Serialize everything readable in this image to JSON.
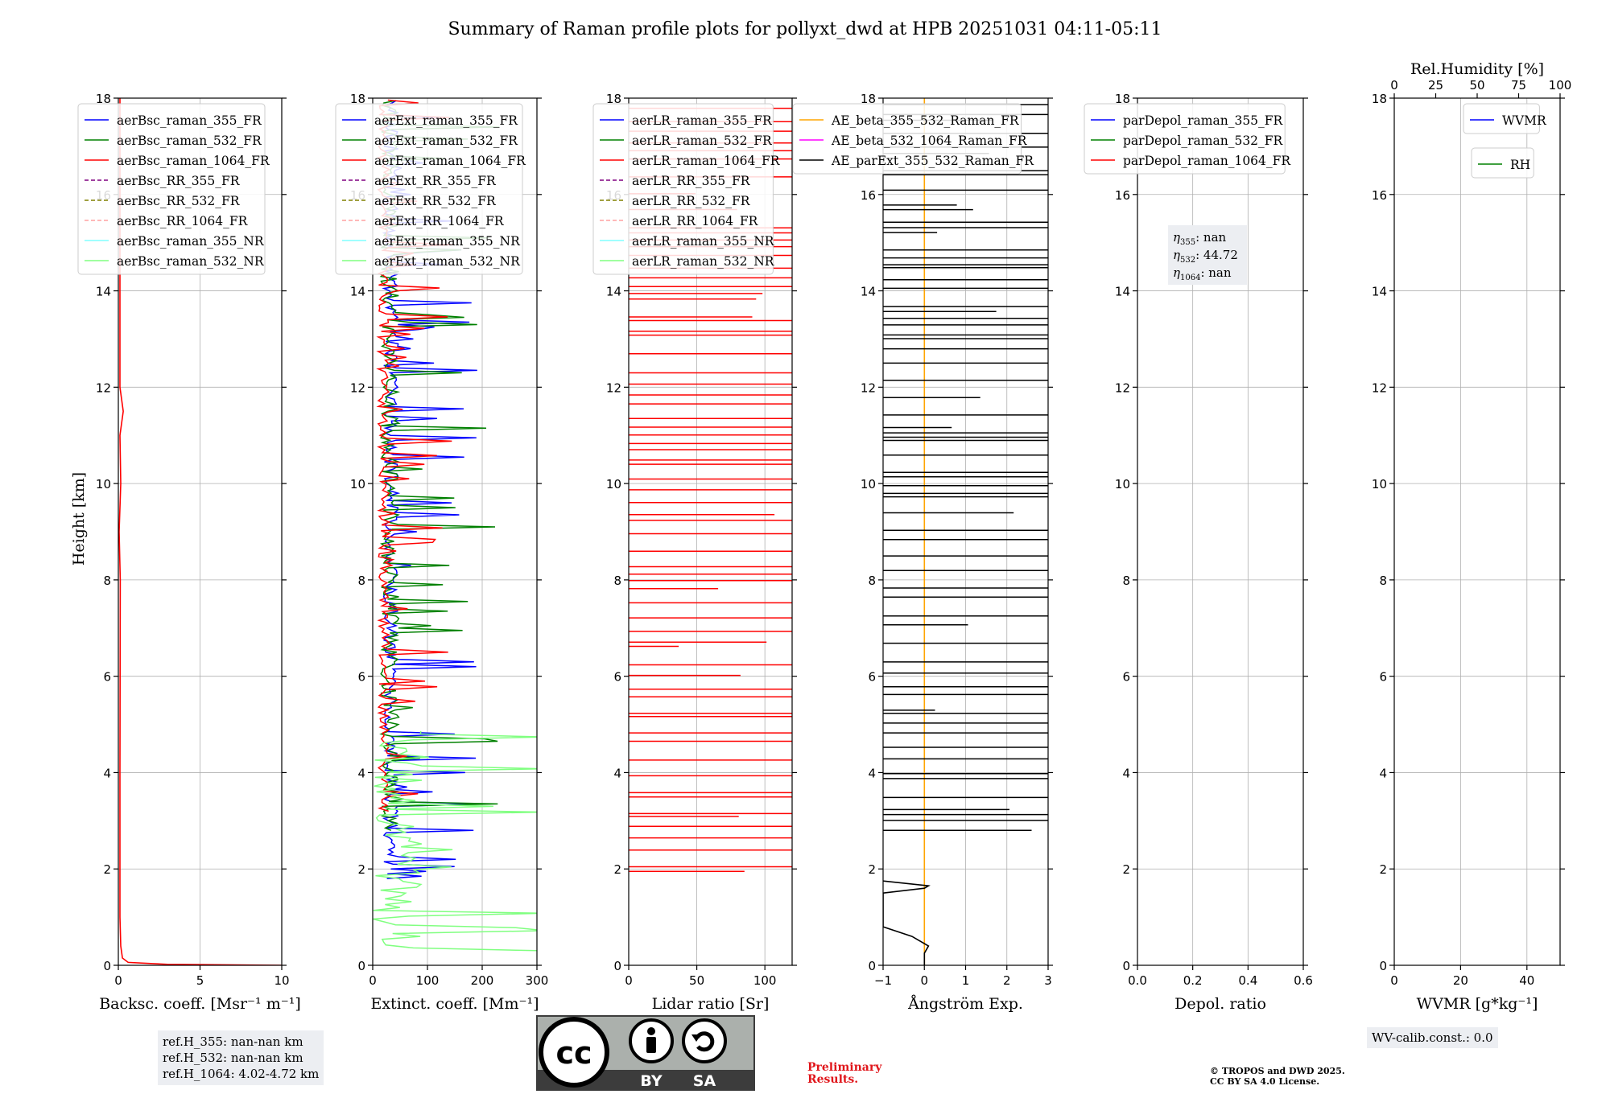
{
  "figure": {
    "title": "Summary of Raman profile plots for pollyxt_dwd at HPB 20251031 04:11-05:11",
    "ylabel": "Height [km]",
    "ylim": [
      0,
      18
    ],
    "yticks": [
      0,
      2,
      4,
      6,
      8,
      10,
      12,
      14,
      16,
      18
    ]
  },
  "colors": {
    "blue": "#0000ff",
    "green": "#008000",
    "red": "#ff0000",
    "purple": "#800080",
    "olive": "#808000",
    "salmon": "#ffa0a0",
    "cyan": "#80ffff",
    "lightgreen": "#80ff80",
    "orange": "#ffa500",
    "magenta": "#ff00ff",
    "black": "#000000"
  },
  "chart_data": [
    {
      "id": "bsc",
      "type": "line",
      "xlabel": "Backsc. coeff. [Msr⁻¹ m⁻¹]",
      "xlim": [
        0,
        10
      ],
      "xticks": [
        0,
        5,
        10
      ],
      "legend": [
        "aerBsc_raman_355_FR",
        "aerBsc_raman_532_FR",
        "aerBsc_raman_1064_FR",
        "aerBsc_RR_355_FR",
        "aerBsc_RR_532_FR",
        "aerBsc_RR_1064_FR",
        "aerBsc_raman_355_NR",
        "aerBsc_raman_532_NR"
      ],
      "legend_styles": [
        [
          "blue",
          "solid"
        ],
        [
          "green",
          "solid"
        ],
        [
          "red",
          "solid"
        ],
        [
          "purple",
          "dashed"
        ],
        [
          "olive",
          "dashed"
        ],
        [
          "salmon",
          "dashed"
        ],
        [
          "cyan",
          "solid"
        ],
        [
          "lightgreen",
          "solid"
        ]
      ],
      "series": [
        {
          "name": "aerBsc_raman_1064_FR",
          "color": "red",
          "points": [
            [
              10,
              0
            ],
            [
              3,
              0.02
            ],
            [
              0.6,
              0.06
            ],
            [
              0.25,
              0.15
            ],
            [
              0.15,
              0.4
            ],
            [
              0.1,
              1
            ],
            [
              0.1,
              4
            ],
            [
              0.12,
              8
            ],
            [
              0.05,
              9
            ],
            [
              0.15,
              10
            ],
            [
              0.1,
              11
            ],
            [
              0.3,
              11.5
            ],
            [
              0.1,
              12
            ],
            [
              0.1,
              18
            ]
          ]
        }
      ]
    },
    {
      "id": "ext",
      "type": "line",
      "xlabel": "Extinct. coeff. [Mm⁻¹]",
      "xlim": [
        0,
        300
      ],
      "xticks": [
        0,
        100,
        200,
        300
      ],
      "legend": [
        "aerExt_raman_355_FR",
        "aerExt_raman_532_FR",
        "aerExt_raman_1064_FR",
        "aerExt_RR_355_FR",
        "aerExt_RR_532_FR",
        "aerExt_RR_1064_FR",
        "aerExt_raman_355_NR",
        "aerExt_raman_532_NR"
      ],
      "legend_styles": [
        [
          "blue",
          "solid"
        ],
        [
          "green",
          "solid"
        ],
        [
          "red",
          "solid"
        ],
        [
          "purple",
          "dashed"
        ],
        [
          "olive",
          "dashed"
        ],
        [
          "salmon",
          "dashed"
        ],
        [
          "cyan",
          "solid"
        ],
        [
          "lightgreen",
          "solid"
        ]
      ],
      "series": [
        {
          "name": "aerExt_raman_355_FR",
          "color": "blue",
          "noisy": {
            "from": 1.8,
            "to": 18,
            "step": 0.05,
            "base": 20,
            "amp": 90,
            "seed": 3
          }
        },
        {
          "name": "aerExt_raman_532_FR",
          "color": "green",
          "noisy": {
            "from": 2.8,
            "to": 18,
            "step": 0.05,
            "base": 15,
            "amp": 110,
            "seed": 7
          }
        },
        {
          "name": "aerExt_raman_1064_FR",
          "color": "red",
          "noisy": {
            "from": 3.2,
            "to": 18,
            "step": 0.06,
            "base": 10,
            "amp": 70,
            "seed": 11
          }
        },
        {
          "name": "aerExt_raman_532_NR",
          "color": "lightgreen",
          "noisy": {
            "from": 0.3,
            "to": 4.9,
            "step": 0.06,
            "base": 0,
            "amp": 300,
            "seed": 19
          }
        }
      ]
    },
    {
      "id": "lr",
      "type": "line",
      "xlabel": "Lidar ratio [Sr]",
      "xlim": [
        0,
        120
      ],
      "xticks": [
        0,
        50,
        100
      ],
      "legend": [
        "aerLR_raman_355_FR",
        "aerLR_raman_532_FR",
        "aerLR_raman_1064_FR",
        "aerLR_RR_355_FR",
        "aerLR_RR_532_FR",
        "aerLR_RR_1064_FR",
        "aerLR_raman_355_NR",
        "aerLR_raman_532_NR"
      ],
      "legend_styles": [
        [
          "blue",
          "solid"
        ],
        [
          "green",
          "solid"
        ],
        [
          "red",
          "solid"
        ],
        [
          "purple",
          "dashed"
        ],
        [
          "olive",
          "dashed"
        ],
        [
          "salmon",
          "dashed"
        ],
        [
          "cyan",
          "solid"
        ],
        [
          "lightgreen",
          "solid"
        ]
      ],
      "series": [
        {
          "name": "aerLR_raman_1064_FR",
          "color": "red",
          "hlines": {
            "from": 1.95,
            "to": 18,
            "seed": 23,
            "first": 85
          }
        }
      ]
    },
    {
      "id": "ae",
      "type": "line",
      "xlabel": "Ångström Exp.",
      "xlim": [
        -1,
        3
      ],
      "xticks": [
        -1,
        0,
        1,
        2,
        3
      ],
      "legend": [
        "AE_beta_355_532_Raman_FR",
        "AE_beta_532_1064_Raman_FR",
        "AE_parExt_355_532_Raman_FR"
      ],
      "legend_styles": [
        [
          "orange",
          "solid"
        ],
        [
          "magenta",
          "solid"
        ],
        [
          "black",
          "solid"
        ]
      ],
      "series": [
        {
          "name": "AE_beta_355_532_Raman_FR",
          "color": "orange",
          "points": [
            [
              0,
              0
            ],
            [
              0,
              18
            ]
          ]
        },
        {
          "name": "AE_parExt_355_532_Raman_FR",
          "color": "black",
          "points": [
            [
              0,
              0
            ],
            [
              0,
              0.25
            ],
            [
              0.1,
              0.4
            ],
            [
              -0.3,
              0.6
            ],
            [
              -1,
              0.8
            ],
            [
              -1,
              1.5
            ],
            [
              0,
              1.6
            ],
            [
              0.1,
              1.65
            ],
            [
              -1,
              1.75
            ]
          ],
          "hlines": {
            "from": 2.8,
            "to": 18,
            "seed": 31,
            "first": 2.6
          }
        }
      ]
    },
    {
      "id": "depol",
      "type": "line",
      "xlabel": "Depol. ratio",
      "xlim": [
        0,
        0.6
      ],
      "xticks": [
        0.0,
        0.2,
        0.4,
        0.6
      ],
      "legend": [
        "parDepol_raman_355_FR",
        "parDepol_raman_532_FR",
        "parDepol_raman_1064_FR"
      ],
      "legend_styles": [
        [
          "blue",
          "solid"
        ],
        [
          "green",
          "solid"
        ],
        [
          "red",
          "solid"
        ]
      ],
      "eta": [
        {
          "sym": "η",
          "sub": "355",
          "val": ": nan"
        },
        {
          "sym": "η",
          "sub": "532",
          "val": ": 44.72"
        },
        {
          "sym": "η",
          "sub": "1064",
          "val": ": nan"
        }
      ],
      "series": []
    },
    {
      "id": "wv",
      "type": "line",
      "xlabel": "WVMR [g*kg⁻¹]",
      "xlim": [
        0,
        50
      ],
      "xticks": [
        0,
        20,
        40
      ],
      "xlabel_top": "Rel.Humidity [%]",
      "top_xlim": [
        0,
        100
      ],
      "top_xticks": [
        0,
        25,
        50,
        75,
        100
      ],
      "legend": [
        "WVMR"
      ],
      "legend_styles": [
        [
          "blue",
          "solid"
        ]
      ],
      "legend2": [
        "RH"
      ],
      "legend2_styles": [
        [
          "green",
          "solid"
        ]
      ],
      "series": []
    }
  ],
  "annotations": {
    "ref": [
      "ref.H_355: nan-nan km",
      "ref.H_532: nan-nan km",
      "ref.H_1064: 4.02-4.72 km"
    ],
    "wv_calib": "WV-calib.const.: 0.0",
    "preliminary": [
      "Preliminary",
      "Results."
    ],
    "copyright": [
      "© TROPOS and DWD 2025.",
      "CC BY SA 4.0 License."
    ],
    "cc_badge": {
      "cc": "cc",
      "by": "BY",
      "sa": "SA"
    }
  }
}
